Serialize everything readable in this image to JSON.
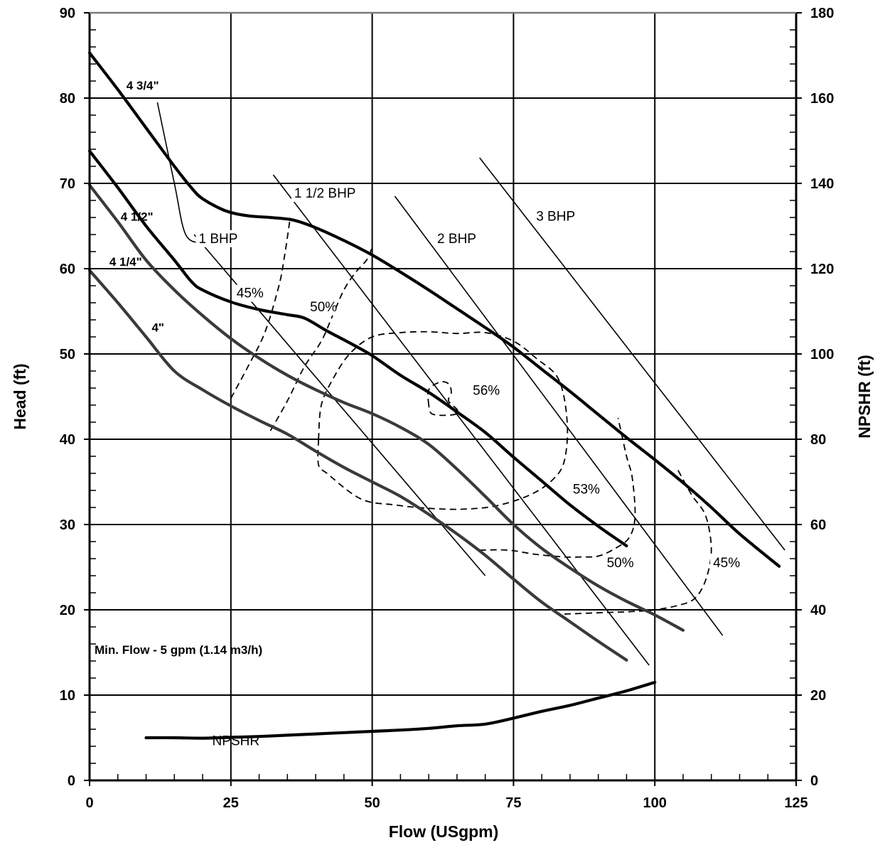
{
  "chart_data": {
    "type": "line",
    "xlabel": "Flow (USgpm)",
    "ylabel": "Head (ft)",
    "y2label": "NPSHR (ft)",
    "xlim": [
      0,
      125
    ],
    "ylim": [
      0,
      90
    ],
    "y2lim": [
      0,
      180
    ],
    "x_ticks": [
      "0",
      "25",
      "50",
      "75",
      "100",
      "125"
    ],
    "y_ticks": [
      "0",
      "10",
      "20",
      "30",
      "40",
      "50",
      "60",
      "70",
      "80",
      "90"
    ],
    "y2_ticks": [
      "0",
      "20",
      "40",
      "60",
      "80",
      "100",
      "120",
      "140",
      "160",
      "180"
    ],
    "grid": true,
    "note": "Min. Flow - 5 gpm (1.14 m3/h)",
    "impeller_curves": [
      {
        "name": "4 3/4\"",
        "points": [
          [
            0,
            85.3
          ],
          [
            5,
            81
          ],
          [
            10,
            76.5
          ],
          [
            15,
            72
          ],
          [
            18,
            69.5
          ],
          [
            20,
            68.2
          ],
          [
            24,
            66.8
          ],
          [
            28,
            66.2
          ],
          [
            32,
            66.0
          ],
          [
            36,
            65.7
          ],
          [
            40,
            64.8
          ],
          [
            45,
            63.3
          ],
          [
            50,
            61.6
          ],
          [
            55,
            59.6
          ],
          [
            60,
            57.5
          ],
          [
            65,
            55.3
          ],
          [
            70,
            53.1
          ],
          [
            75,
            50.8
          ],
          [
            80,
            48.2
          ],
          [
            85,
            45.6
          ],
          [
            90,
            42.9
          ],
          [
            95,
            40.2
          ],
          [
            100,
            37.6
          ],
          [
            105,
            34.9
          ],
          [
            110,
            32.0
          ],
          [
            115,
            28.9
          ],
          [
            122,
            25.1
          ]
        ]
      },
      {
        "name": "4 1/2\"",
        "points": [
          [
            0,
            73.8
          ],
          [
            5,
            69.5
          ],
          [
            10,
            65
          ],
          [
            15,
            61
          ],
          [
            18,
            58.5
          ],
          [
            20,
            57.5
          ],
          [
            25,
            56.1
          ],
          [
            30,
            55.2
          ],
          [
            35,
            54.6
          ],
          [
            38,
            54.2
          ],
          [
            42,
            52.7
          ],
          [
            46,
            51.3
          ],
          [
            50,
            49.8
          ],
          [
            55,
            47.5
          ],
          [
            60,
            45.5
          ],
          [
            65,
            43.2
          ],
          [
            70,
            40.8
          ],
          [
            75,
            37.9
          ],
          [
            80,
            35.1
          ],
          [
            85,
            32.3
          ],
          [
            90,
            29.8
          ],
          [
            95,
            27.5
          ]
        ]
      },
      {
        "name": "4 1/4\"",
        "points": [
          [
            0,
            69.8
          ],
          [
            5,
            65.5
          ],
          [
            10,
            61
          ],
          [
            15,
            57.5
          ],
          [
            20,
            54.5
          ],
          [
            25,
            51.8
          ],
          [
            30,
            49.5
          ],
          [
            35,
            47.5
          ],
          [
            40,
            45.8
          ],
          [
            45,
            44.3
          ],
          [
            50,
            43.0
          ],
          [
            55,
            41.4
          ],
          [
            60,
            39.4
          ],
          [
            65,
            36.5
          ],
          [
            70,
            33.3
          ],
          [
            75,
            30.0
          ],
          [
            80,
            27.2
          ],
          [
            85,
            24.9
          ],
          [
            90,
            22.8
          ],
          [
            95,
            21.0
          ],
          [
            100,
            19.4
          ],
          [
            105,
            17.6
          ]
        ]
      },
      {
        "name": "4\"",
        "points": [
          [
            0,
            59.8
          ],
          [
            5,
            56
          ],
          [
            10,
            52
          ],
          [
            15,
            48
          ],
          [
            20,
            45.8
          ],
          [
            25,
            43.9
          ],
          [
            30,
            42.2
          ],
          [
            35,
            40.6
          ],
          [
            40,
            38.6
          ],
          [
            45,
            36.7
          ],
          [
            50,
            35.0
          ],
          [
            55,
            33.3
          ],
          [
            60,
            31.2
          ],
          [
            65,
            28.9
          ],
          [
            70,
            26.4
          ],
          [
            75,
            23.6
          ],
          [
            80,
            20.9
          ],
          [
            85,
            18.6
          ],
          [
            90,
            16.3
          ],
          [
            95,
            14.1
          ]
        ]
      }
    ],
    "npshr_curve": {
      "name": "NPSHR",
      "axis": "right",
      "points": [
        [
          10,
          10
        ],
        [
          15,
          10
        ],
        [
          20,
          9.9
        ],
        [
          25,
          10.1
        ],
        [
          30,
          10.3
        ],
        [
          35,
          10.6
        ],
        [
          40,
          10.9
        ],
        [
          45,
          11.2
        ],
        [
          50,
          11.5
        ],
        [
          55,
          11.8
        ],
        [
          60,
          12.2
        ],
        [
          65,
          12.8
        ],
        [
          70,
          13.2
        ],
        [
          75,
          14.6
        ],
        [
          80,
          16.2
        ],
        [
          85,
          17.6
        ],
        [
          90,
          19.3
        ],
        [
          95,
          21.0
        ],
        [
          100,
          23.0
        ]
      ]
    },
    "bhp_lines": [
      {
        "name": "1 BHP",
        "points": [
          [
            12,
            79.5
          ],
          [
            15,
            70
          ],
          [
            17,
            64
          ],
          [
            20,
            63
          ]
        ]
      },
      {
        "name": "1 BHP",
        "points": [
          [
            18.5,
            64
          ],
          [
            70,
            24
          ]
        ]
      },
      {
        "name": "1 1/2 BHP",
        "points": [
          [
            32.5,
            71
          ],
          [
            99,
            13.5
          ]
        ]
      },
      {
        "name": "2 BHP",
        "points": [
          [
            54,
            68.5
          ],
          [
            112,
            17
          ]
        ]
      },
      {
        "name": "3 BHP",
        "points": [
          [
            69,
            73
          ],
          [
            123,
            27
          ]
        ]
      }
    ],
    "efficiency_contours": [
      {
        "name": "45%",
        "points": [
          [
            25,
            44.8
          ],
          [
            28,
            48.5
          ],
          [
            31,
            52.5
          ],
          [
            33.5,
            58
          ],
          [
            34.5,
            61.5
          ],
          [
            35.5,
            66
          ]
        ]
      },
      {
        "name": "50%",
        "points": [
          [
            32,
            41
          ],
          [
            35,
            44.5
          ],
          [
            38,
            48.5
          ],
          [
            41,
            51.5
          ],
          [
            43,
            54.5
          ],
          [
            45,
            57.5
          ],
          [
            47,
            59.5
          ],
          [
            49,
            61
          ],
          [
            50,
            62.5
          ]
        ]
      },
      {
        "name": "53%",
        "points": [
          [
            40.5,
            40
          ],
          [
            40.5,
            37
          ],
          [
            42,
            36
          ],
          [
            48,
            33
          ],
          [
            54,
            32.3
          ],
          [
            60,
            31.9
          ],
          [
            66,
            31.8
          ],
          [
            72,
            32.2
          ],
          [
            78,
            33.5
          ],
          [
            82,
            35.3
          ],
          [
            84,
            37.5
          ],
          [
            84.5,
            42
          ],
          [
            83,
            47
          ],
          [
            79,
            49.5
          ],
          [
            75,
            51.5
          ],
          [
            70,
            52.5
          ],
          [
            65,
            52.4
          ],
          [
            60,
            52.6
          ],
          [
            55,
            52.5
          ],
          [
            50,
            52
          ],
          [
            46,
            50
          ],
          [
            43,
            47
          ],
          [
            41,
            44
          ],
          [
            40.5,
            40
          ]
        ]
      },
      {
        "name": "56%",
        "points": [
          [
            60,
            44
          ],
          [
            60,
            45.8
          ],
          [
            62,
            46.7
          ],
          [
            63.5,
            46.5
          ],
          [
            64,
            45.5
          ],
          [
            63.5,
            44.5
          ],
          [
            65,
            43.5
          ],
          [
            65,
            43
          ],
          [
            63,
            42.8
          ],
          [
            60.5,
            43
          ],
          [
            60,
            44
          ]
        ]
      },
      {
        "name": "50%",
        "points": [
          [
            69,
            27
          ],
          [
            74,
            27
          ],
          [
            79,
            26.5
          ],
          [
            84,
            26.2
          ],
          [
            87,
            26.2
          ],
          [
            90,
            26.3
          ],
          [
            93,
            27.2
          ],
          [
            95.5,
            28.5
          ],
          [
            96.5,
            31
          ],
          [
            96,
            35.5
          ],
          [
            95,
            38
          ],
          [
            93.5,
            42.5
          ]
        ]
      },
      {
        "name": "45%",
        "points": [
          [
            84,
            19.5
          ],
          [
            88,
            19.6
          ],
          [
            92,
            19.7
          ],
          [
            96,
            19.8
          ],
          [
            100,
            20.0
          ],
          [
            104,
            20.5
          ],
          [
            107,
            21.3
          ],
          [
            109,
            23.5
          ],
          [
            110,
            27
          ],
          [
            109,
            31
          ],
          [
            106.5,
            33.5
          ],
          [
            104,
            36.5
          ]
        ]
      }
    ],
    "curve_labels": [
      "4 3/4\"",
      "4 1/2\"",
      "4 1/4\"",
      "4\"",
      "1 BHP",
      "1 1/2 BHP",
      "2 BHP",
      "3 BHP",
      "45%",
      "50%",
      "56%",
      "53%",
      "50%",
      "45%",
      "NPSHR"
    ],
    "colors": {
      "curves_dark": "#000000",
      "curves_grey": "#3a3a3a",
      "grid": "#000000"
    }
  }
}
